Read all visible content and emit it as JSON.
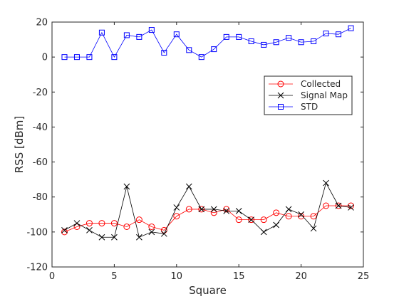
{
  "chart_data": {
    "type": "line",
    "xlabel": "Square",
    "ylabel": "RSS [dBm]",
    "xlim": [
      0,
      25
    ],
    "ylim": [
      -120,
      20
    ],
    "xticks": [
      0,
      5,
      10,
      15,
      20,
      25
    ],
    "yticks": [
      -120,
      -100,
      -80,
      -60,
      -40,
      -20,
      0,
      20
    ],
    "grid": false,
    "legend_position": "top-right",
    "x": [
      1,
      2,
      3,
      4,
      5,
      6,
      7,
      8,
      9,
      10,
      11,
      12,
      13,
      14,
      15,
      16,
      17,
      18,
      19,
      20,
      21,
      22,
      23,
      24
    ],
    "series": [
      {
        "name": "Collected",
        "color": "#ff0000",
        "marker": "circle",
        "values": [
          -100,
          -97,
          -95,
          -95,
          -95,
          -97,
          -93,
          -97,
          -99,
          -91,
          -87,
          -87,
          -89,
          -87,
          -93,
          -93,
          -93,
          -89,
          -91,
          -91,
          -91,
          -85,
          -85,
          -85
        ]
      },
      {
        "name": "Signal Map",
        "color": "#000000",
        "marker": "x",
        "values": [
          -99,
          -95,
          -99,
          -103,
          -103,
          -74,
          -103,
          -100,
          -101,
          -86,
          -74,
          -87,
          -87,
          -88,
          -88,
          -93,
          -100,
          -96,
          -87,
          -90,
          -98,
          -72,
          -85,
          -86
        ]
      },
      {
        "name": "STD",
        "color": "#0000ff",
        "marker": "square",
        "values": [
          0,
          0,
          0,
          14,
          0,
          12.5,
          11.5,
          15.5,
          2.5,
          13,
          4,
          0,
          4.5,
          11.5,
          11.5,
          9,
          7,
          8.5,
          11,
          8.5,
          9,
          13.5,
          13,
          16.5
        ]
      }
    ]
  }
}
